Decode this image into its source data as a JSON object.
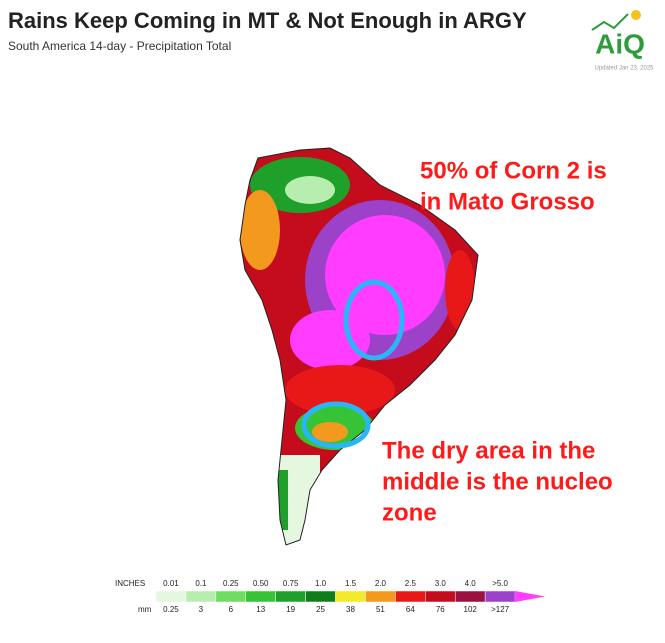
{
  "header": {
    "title": "Rains Keep Coming in MT & Not Enough in ARGY",
    "subtitle": "South America 14-day - Precipitation Total"
  },
  "logo": {
    "text": "AiQ",
    "updated": "Updated Jan 23, 2025"
  },
  "annotations": [
    {
      "lines": [
        "50% of Corn 2 is",
        "in Mato Grosso"
      ],
      "color": "#ff1a1a"
    },
    {
      "lines": [
        "The dry area in the",
        "middle is the nucleo",
        "zone"
      ],
      "color": "#ff1a1a"
    }
  ],
  "legend": {
    "inches_title": "INCHES",
    "mm_title": "mm",
    "inches": [
      "0.01",
      "0.1",
      "0.25",
      "0.50",
      "0.75",
      "1.0",
      "1.5",
      "2.0",
      "2.5",
      "3.0",
      "4.0",
      ">5.0"
    ],
    "mm": [
      "0.25",
      "3",
      "6",
      "13",
      "19",
      "25",
      "38",
      "51",
      "64",
      "76",
      "102",
      ">127"
    ],
    "colors": [
      "#e6f7df",
      "#b8edb0",
      "#6fdc62",
      "#36c336",
      "#1fa02a",
      "#0f7d1a",
      "#f2ea2a",
      "#f39a1e",
      "#e81818",
      "#c40c1c",
      "#9a1240",
      "#9b42c8",
      "#ff3cff"
    ]
  }
}
